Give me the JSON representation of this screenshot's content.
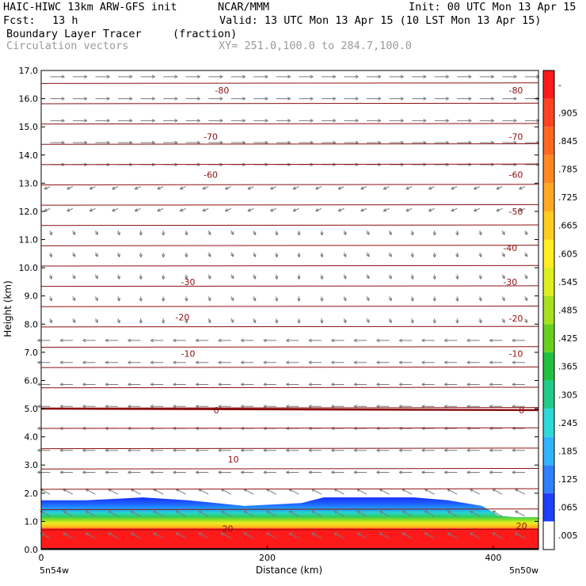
{
  "header": {
    "model": "HAIC-HIWC 13km ARW-GFS init",
    "org": "NCAR/MMM",
    "init": "Init: 00 UTC Mon 13 Apr 15",
    "fcst_label": "Fcst:",
    "fcst_value": "13 h",
    "valid": "Valid: 13 UTC Mon 13 Apr 15 (10 LST Mon 13 Apr 15)",
    "field": "Boundary Layer Tracer",
    "units": "(fraction)",
    "overlay": "Circulation vectors",
    "xy": "XY= 251.0,100.0 to 284.7,100.0"
  },
  "chart_data": {
    "type": "heatmap",
    "title": "Boundary Layer Tracer",
    "xlabel": "Distance (km)",
    "ylabel": "Height (km)",
    "xlim": [
      0,
      440
    ],
    "ylim": [
      0,
      17
    ],
    "x_ticks": [
      "0",
      "200",
      "400"
    ],
    "y_ticks": [
      "0.0",
      "1.0",
      "2.0",
      "3.0",
      "4.0",
      "5.0",
      "6.0",
      "7.0",
      "8.0",
      "9.0",
      "10.0",
      "11.0",
      "12.0",
      "13.0",
      "14.0",
      "15.0",
      "16.0",
      "17.0"
    ],
    "x_end_labels": [
      "5n54w",
      "5n50w"
    ],
    "colorbar": {
      "labels": [
        ".005",
        ".065",
        ".125",
        ".185",
        ".245",
        ".305",
        ".365",
        ".425",
        ".485",
        ".545",
        ".605",
        ".665",
        ".725",
        ".785",
        ".845",
        ".905",
        "-"
      ],
      "colors": [
        "#ffffff",
        "#1f3fff",
        "#2f7fff",
        "#33b3ff",
        "#2fd9d9",
        "#22cc88",
        "#22c040",
        "#66d020",
        "#a8e020",
        "#ddee20",
        "#ffee22",
        "#ffcc22",
        "#ffaa22",
        "#ff8822",
        "#ff6622",
        "#ff4422",
        "#ff1a1a"
      ]
    },
    "boundary_layer_top": {
      "x": [
        0,
        40,
        90,
        130,
        180,
        230,
        250,
        280,
        330,
        360,
        390,
        405,
        420,
        440
      ],
      "y": [
        1.75,
        1.75,
        1.85,
        1.75,
        1.55,
        1.65,
        1.85,
        1.85,
        1.85,
        1.75,
        1.55,
        1.2,
        1.15,
        1.15
      ]
    },
    "temperature_contours": {
      "levels": [
        20,
        10,
        0,
        -10,
        -20,
        -30,
        -40,
        -50,
        -60,
        -70,
        -80
      ],
      "labels_shown": [
        "20",
        "10",
        "0",
        "-10",
        "-20",
        "-30",
        "-40",
        "-50",
        "-60",
        "-70",
        "-80",
        "20",
        "0",
        "-10",
        "-20",
        "-30",
        "-40",
        "-50",
        "-60",
        "-70",
        "-80",
        "-80"
      ]
    },
    "contour_labels": [
      {
        "text": "20",
        "x": 165,
        "y": 0.75
      },
      {
        "text": "10",
        "x": 170,
        "y": 3.2
      },
      {
        "text": "0",
        "x": 155,
        "y": 4.95
      },
      {
        "text": "-10",
        "x": 130,
        "y": 6.95
      },
      {
        "text": "-20",
        "x": 125,
        "y": 8.25
      },
      {
        "text": "-30",
        "x": 130,
        "y": 9.5
      },
      {
        "text": "-60",
        "x": 150,
        "y": 13.3
      },
      {
        "text": "-70",
        "x": 150,
        "y": 14.65
      },
      {
        "text": "-80",
        "x": 160,
        "y": 16.3
      },
      {
        "text": "20",
        "x": 425,
        "y": 0.85
      },
      {
        "text": "0",
        "x": 425,
        "y": 4.95
      },
      {
        "text": "-10",
        "x": 420,
        "y": 6.95
      },
      {
        "text": "-20",
        "x": 420,
        "y": 8.2
      },
      {
        "text": "-30",
        "x": 415,
        "y": 9.5
      },
      {
        "text": "-40",
        "x": 415,
        "y": 10.7
      },
      {
        "text": "-50",
        "x": 420,
        "y": 12.0
      },
      {
        "text": "-60",
        "x": 420,
        "y": 13.3
      },
      {
        "text": "-70",
        "x": 420,
        "y": 14.65
      },
      {
        "text": "-80",
        "x": 420,
        "y": 16.3
      }
    ]
  }
}
